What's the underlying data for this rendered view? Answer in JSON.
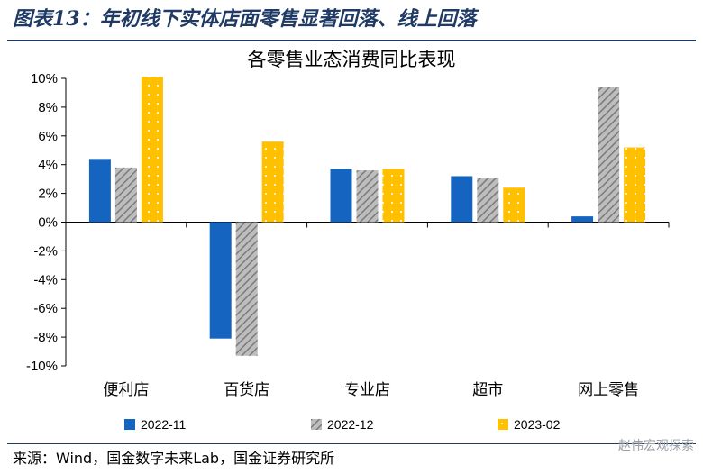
{
  "figure_title": "图表13：年初线下实体店面零售显著回落、线上回落",
  "source": "来源：Wind，国金数字未来Lab，国金证券研究所",
  "watermark": "赵伟宏观探索",
  "colors": {
    "title": "#1f3a64",
    "series_2022_11": "#1565c0",
    "series_2022_12_base": "#9e9e9e",
    "series_2023_02": "#ffc000",
    "axis": "#000000"
  },
  "chart_data": {
    "type": "bar",
    "title": "各零售业态消费同比表现",
    "categories": [
      "便利店",
      "百货店",
      "专业店",
      "超市",
      "网上零售"
    ],
    "series": [
      {
        "name": "2022-11",
        "values": [
          4.4,
          -8.1,
          3.7,
          3.2,
          0.4
        ],
        "pattern": "solid"
      },
      {
        "name": "2022-12",
        "values": [
          3.8,
          -9.3,
          3.6,
          3.1,
          9.4
        ],
        "pattern": "hatched-gray"
      },
      {
        "name": "2023-02",
        "values": [
          10.1,
          5.6,
          3.7,
          2.4,
          5.2
        ],
        "pattern": "dotted-gold"
      }
    ],
    "ylim": [
      -10,
      10
    ],
    "yticks": [
      "10%",
      "8%",
      "6%",
      "4%",
      "2%",
      "0%",
      "-2%",
      "-4%",
      "-6%",
      "-8%",
      "-10%"
    ],
    "ytick_values": [
      10,
      8,
      6,
      4,
      2,
      0,
      -2,
      -4,
      -6,
      -8,
      -10
    ],
    "legend_position": "bottom",
    "grid": false
  }
}
